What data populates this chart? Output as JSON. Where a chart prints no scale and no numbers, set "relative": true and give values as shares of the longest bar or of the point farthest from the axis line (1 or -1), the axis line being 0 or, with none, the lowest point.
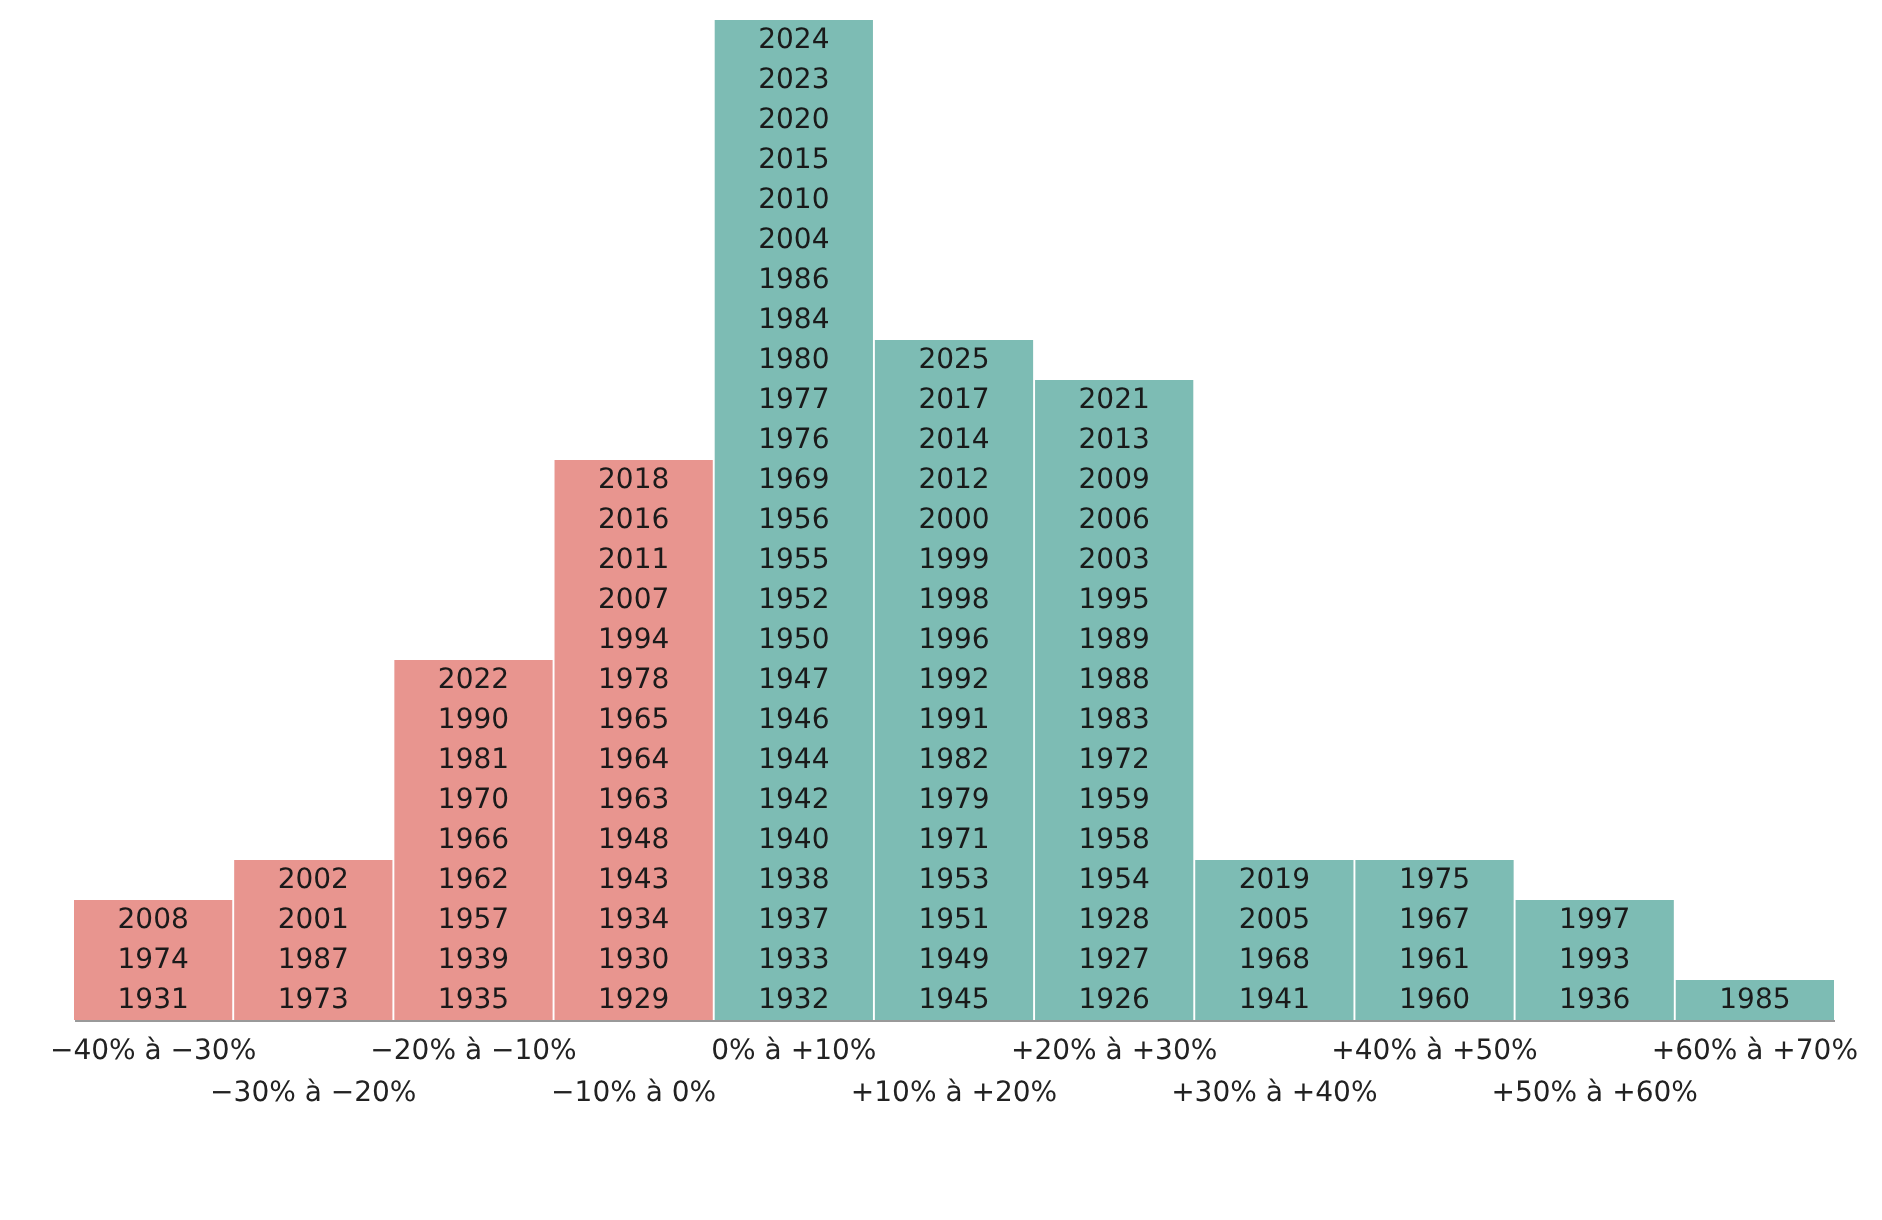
{
  "chart_data": {
    "type": "bar",
    "relative": true,
    "categories": [
      "−40% à −30%",
      "−30% à −20%",
      "−20% à −10%",
      "−10% à 0%",
      "0% à +10%",
      "+10% à +20%",
      "+20% à +30%",
      "+30% à +40%",
      "+40% à +50%",
      "+50% à +60%",
      "+60% à +70%"
    ],
    "values": [
      0.12,
      0.16,
      0.36,
      0.56,
      1,
      0.68,
      0.64,
      0.16,
      0.16,
      0.12,
      0.04
    ],
    "colors": [
      "#e8958f",
      "#e8958f",
      "#e8958f",
      "#e8958f",
      "#7dbcb4",
      "#7dbcb4",
      "#7dbcb4",
      "#7dbcb4",
      "#7dbcb4",
      "#7dbcb4",
      "#7dbcb4"
    ],
    "annotations": [
      "1931",
      "1974",
      "2008",
      "1973",
      "1987",
      "2001",
      "2002",
      "1935",
      "1939",
      "1957",
      "1962",
      "1966",
      "1970",
      "1981",
      "1990",
      "2022",
      "1929",
      "1930",
      "1934",
      "1943",
      "1948",
      "1963",
      "1964",
      "1965",
      "1978",
      "1994",
      "2007",
      "2011",
      "2016",
      "2018",
      "1932",
      "1933",
      "1937",
      "1938",
      "1940",
      "1942",
      "1944",
      "1946",
      "1947",
      "1950",
      "1952",
      "1955",
      "1956",
      "1969",
      "1976",
      "1977",
      "1980",
      "1984",
      "1986",
      "2004",
      "2010",
      "2015",
      "2020",
      "2023",
      "2024",
      "1945",
      "1949",
      "1951",
      "1953",
      "1971",
      "1979",
      "1982",
      "1991",
      "1992",
      "1996",
      "1998",
      "1999",
      "2000",
      "2012",
      "2014",
      "2017",
      "2025",
      "1926",
      "1927",
      "1928",
      "1954",
      "1958",
      "1959",
      "1972",
      "1983",
      "1988",
      "1989",
      "1995",
      "2003",
      "2006",
      "2009",
      "2013",
      "2021",
      "1941",
      "1968",
      "2005",
      "2019",
      "1960",
      "1961",
      "1967",
      "1975",
      "1936",
      "1993",
      "1997",
      "1985"
    ]
  }
}
